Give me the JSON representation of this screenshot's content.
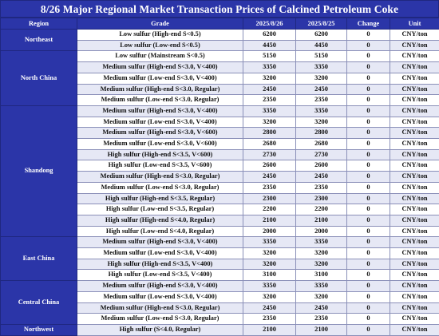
{
  "title": "8/26 Major Regional Market Transaction Prices of Calcined Petroleum Coke",
  "columns": {
    "region": "Region",
    "grade": "Grade",
    "date1": "2025/8/26",
    "date2": "2025/8/25",
    "change": "Change",
    "unit": "Unit"
  },
  "groups": [
    {
      "region": "Northeast",
      "rows": [
        {
          "grade": "Low sulfur (High-end S<0.5)",
          "d1": "6200",
          "d2": "6200",
          "chg": "0",
          "unit": "CNY/ton"
        },
        {
          "grade": "Low sulfur (Low-end S<0.5)",
          "d1": "4450",
          "d2": "4450",
          "chg": "0",
          "unit": "CNY/ton"
        }
      ]
    },
    {
      "region": "North China",
      "rows": [
        {
          "grade": "Low sulfur (Mainstream S<0.5)",
          "d1": "5150",
          "d2": "5150",
          "chg": "0",
          "unit": "CNY/ton"
        },
        {
          "grade": "Medium sulfur (High-end S<3.0, V<400)",
          "d1": "3350",
          "d2": "3350",
          "chg": "0",
          "unit": "CNY/ton"
        },
        {
          "grade": "Medium sulfur (Low-end S<3.0, V<400)",
          "d1": "3200",
          "d2": "3200",
          "chg": "0",
          "unit": "CNY/ton"
        },
        {
          "grade": "Medium sulfur (High-end S<3.0, Regular)",
          "d1": "2450",
          "d2": "2450",
          "chg": "0",
          "unit": "CNY/ton"
        },
        {
          "grade": "Medium sulfur (Low-end S<3.0, Regular)",
          "d1": "2350",
          "d2": "2350",
          "chg": "0",
          "unit": "CNY/ton"
        }
      ]
    },
    {
      "region": "Shandong",
      "rows": [
        {
          "grade": "Medium sulfur (High-end S<3.0, V<400)",
          "d1": "3350",
          "d2": "3350",
          "chg": "0",
          "unit": "CNY/ton"
        },
        {
          "grade": "Medium sulfur (Low-end S<3.0, V<400)",
          "d1": "3200",
          "d2": "3200",
          "chg": "0",
          "unit": "CNY/ton"
        },
        {
          "grade": "Medium sulfur (High-end S<3.0, V<600)",
          "d1": "2800",
          "d2": "2800",
          "chg": "0",
          "unit": "CNY/ton"
        },
        {
          "grade": "Medium sulfur (Low-end S<3.0, V<600)",
          "d1": "2680",
          "d2": "2680",
          "chg": "0",
          "unit": "CNY/ton"
        },
        {
          "grade": "High sulfur (High-end S<3.5, V<600)",
          "d1": "2730",
          "d2": "2730",
          "chg": "0",
          "unit": "CNY/ton"
        },
        {
          "grade": "High sulfur (Low-end S<3.5, V<600)",
          "d1": "2600",
          "d2": "2600",
          "chg": "0",
          "unit": "CNY/ton"
        },
        {
          "grade": "Medium sulfur (High-end S<3.0, Regular)",
          "d1": "2450",
          "d2": "2450",
          "chg": "0",
          "unit": "CNY/ton"
        },
        {
          "grade": "Medium sulfur (Low-end S<3.0, Regular)",
          "d1": "2350",
          "d2": "2350",
          "chg": "0",
          "unit": "CNY/ton"
        },
        {
          "grade": "High sulfur (High-end S<3.5, Regular)",
          "d1": "2300",
          "d2": "2300",
          "chg": "0",
          "unit": "CNY/ton"
        },
        {
          "grade": "High sulfur (Low-end S<3.5, Regular)",
          "d1": "2200",
          "d2": "2200",
          "chg": "0",
          "unit": "CNY/ton"
        },
        {
          "grade": "High sulfur (High-end S<4.0, Regular)",
          "d1": "2100",
          "d2": "2100",
          "chg": "0",
          "unit": "CNY/ton"
        },
        {
          "grade": "High sulfur (Low-end S<4.0, Regular)",
          "d1": "2000",
          "d2": "2000",
          "chg": "0",
          "unit": "CNY/ton"
        }
      ]
    },
    {
      "region": "East China",
      "rows": [
        {
          "grade": "Medium sulfur (High-end S<3.0, V<400)",
          "d1": "3350",
          "d2": "3350",
          "chg": "0",
          "unit": "CNY/ton"
        },
        {
          "grade": "Medium sulfur (Low-end S<3.0, V<400)",
          "d1": "3200",
          "d2": "3200",
          "chg": "0",
          "unit": "CNY/ton"
        },
        {
          "grade": "High sulfur (High-end S<3.5, V<400)",
          "d1": "3200",
          "d2": "3200",
          "chg": "0",
          "unit": "CNY/ton"
        },
        {
          "grade": "High sulfur (Low-end S<3.5, V<400)",
          "d1": "3100",
          "d2": "3100",
          "chg": "0",
          "unit": "CNY/ton"
        }
      ]
    },
    {
      "region": "Central China",
      "rows": [
        {
          "grade": "Medium sulfur (High-end S<3.0, V<400)",
          "d1": "3350",
          "d2": "3350",
          "chg": "0",
          "unit": "CNY/ton"
        },
        {
          "grade": "Medium sulfur (Low-end S<3.0, V<400)",
          "d1": "3200",
          "d2": "3200",
          "chg": "0",
          "unit": "CNY/ton"
        },
        {
          "grade": "Medium sulfur (High-end S<3.0, Regular)",
          "d1": "2450",
          "d2": "2450",
          "chg": "0",
          "unit": "CNY/ton"
        },
        {
          "grade": "Medium sulfur (Low-end S<3.0, Regular)",
          "d1": "2350",
          "d2": "2350",
          "chg": "0",
          "unit": "CNY/ton"
        }
      ]
    },
    {
      "region": "Northwest",
      "rows": [
        {
          "grade": "High sulfur (S<4.0, Regular)",
          "d1": "2100",
          "d2": "2100",
          "chg": "0",
          "unit": "CNY/ton"
        }
      ]
    }
  ],
  "colors": {
    "header_bg": "#2b35a8",
    "header_text": "#ffffff",
    "stripe_bg": "#e6e8f5",
    "row_bg": "#ffffff"
  }
}
